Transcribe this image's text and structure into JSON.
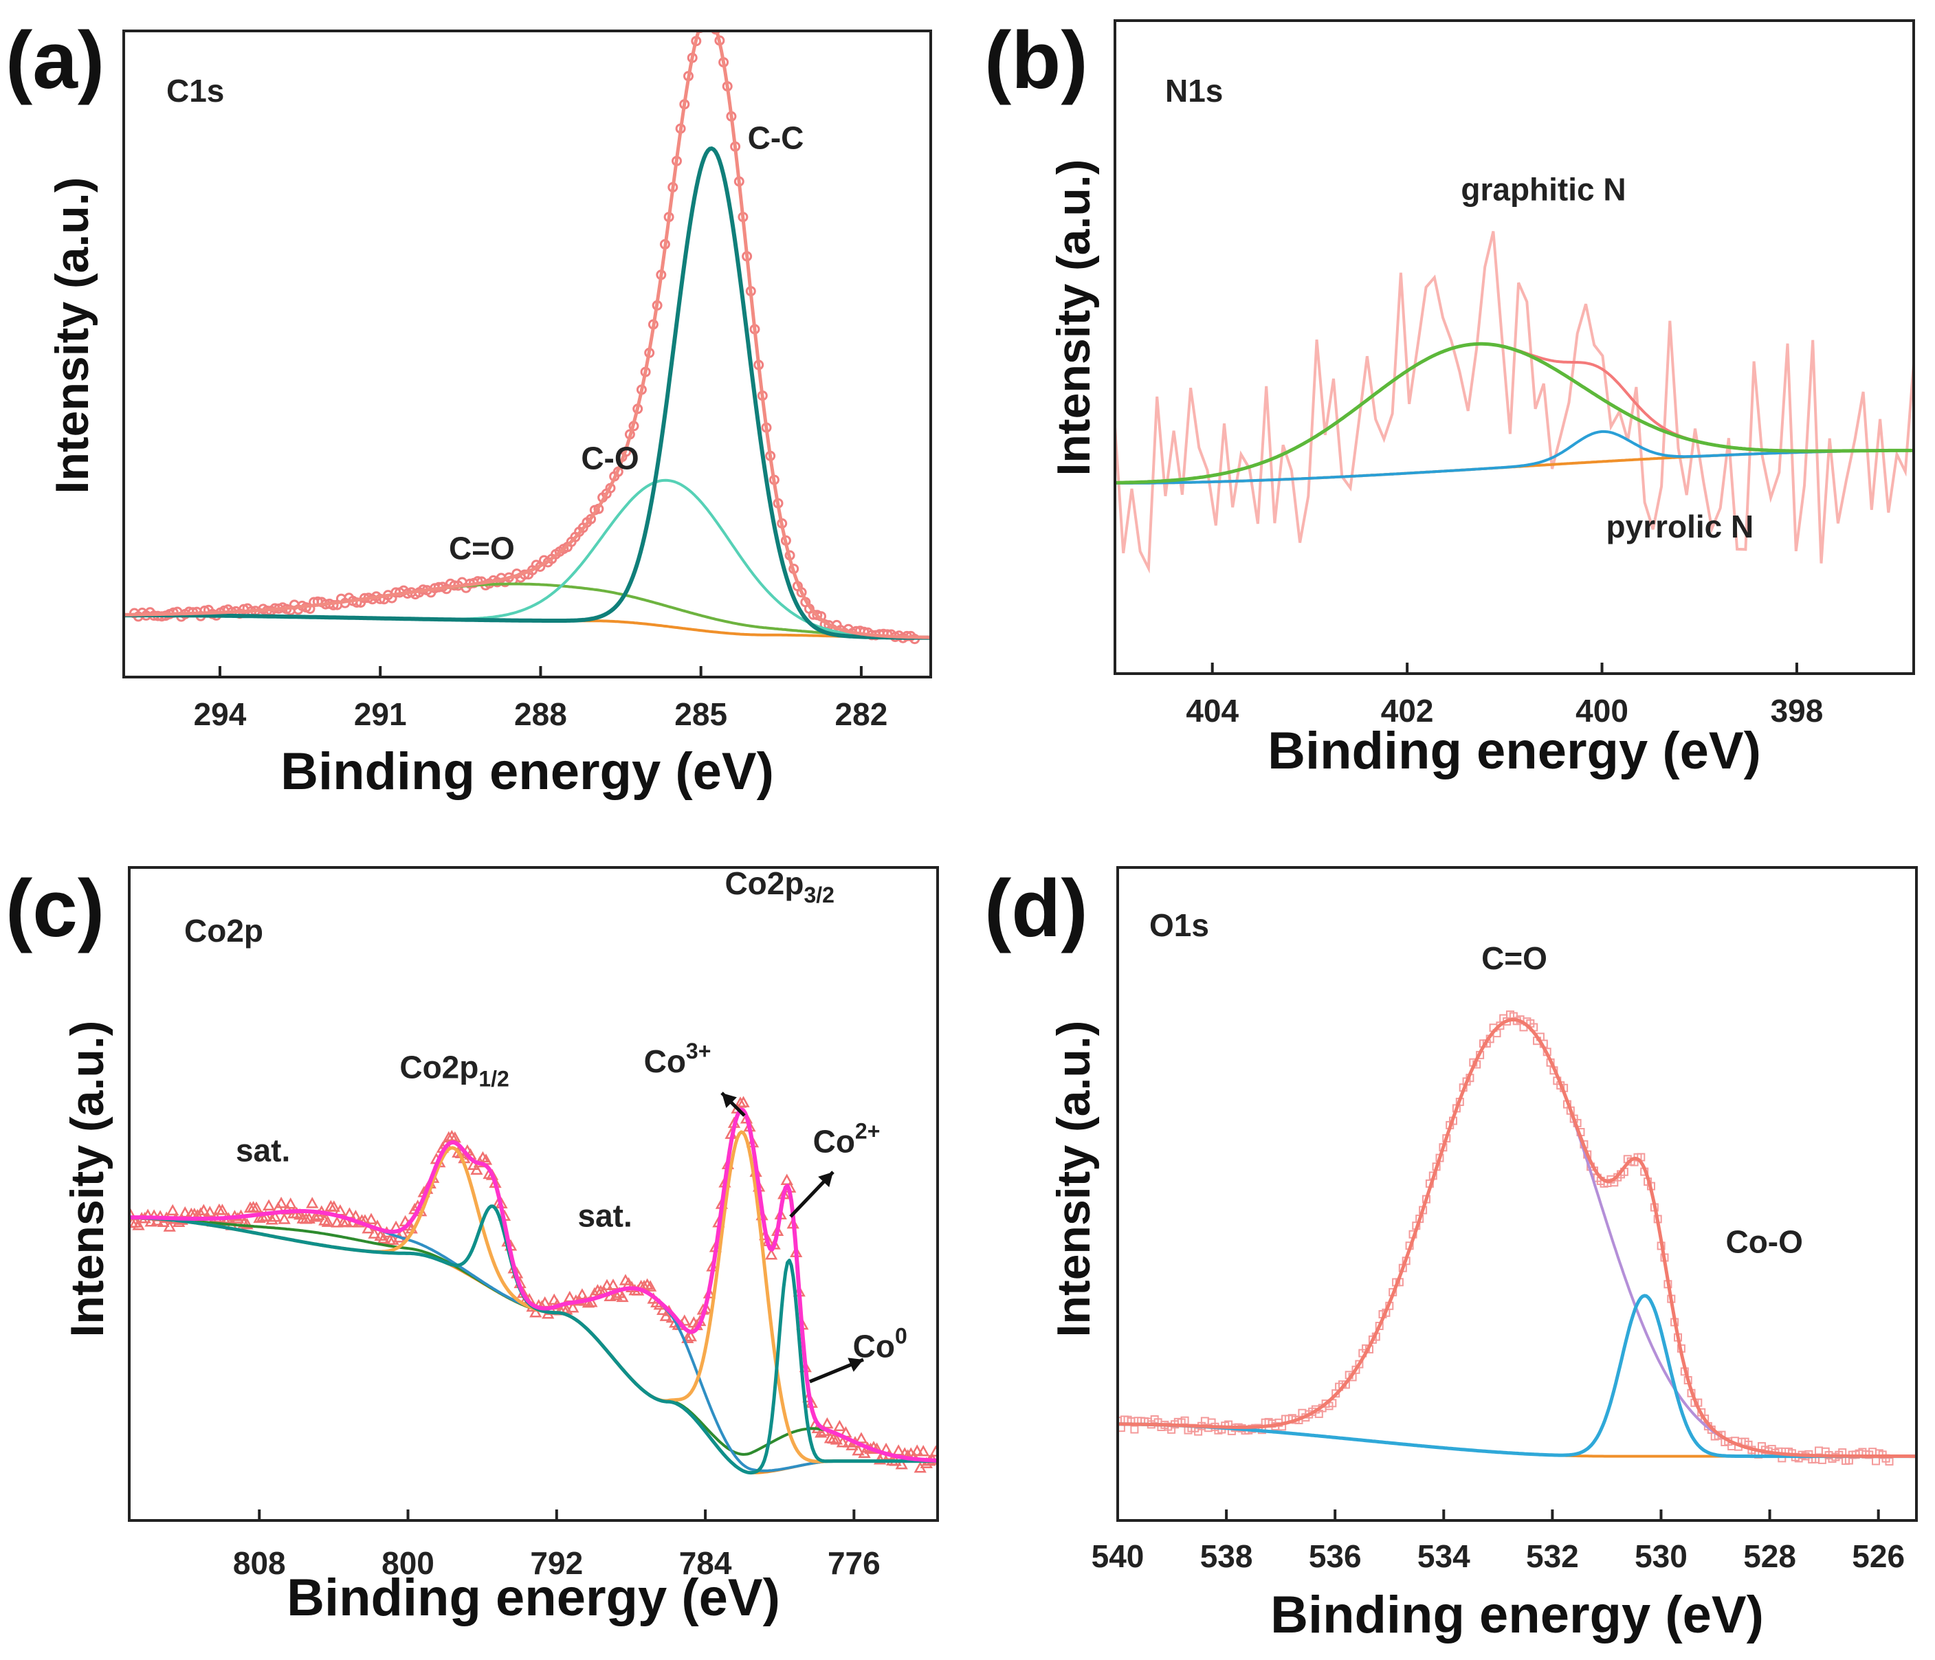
{
  "figure_labels": [
    "(a)",
    "(b)",
    "(c)",
    "(d)"
  ],
  "chart_data": [
    {
      "panel": "(a)",
      "type": "line",
      "title": "C1s",
      "xlabel": "Binding energy (eV)",
      "ylabel": "Intensity (a.u.)",
      "xlim": [
        295.8,
        280.7
      ],
      "ylim": [
        -0.1,
        1.05
      ],
      "xticks": [
        294,
        291,
        288,
        285,
        282
      ],
      "xtick_labels": [
        "294",
        "291",
        "288",
        "285",
        "282"
      ],
      "colors": {
        "raw": "#f08080",
        "envelope": "#f28b82",
        "cc": "#0f7f7a",
        "co": "#56d1b6",
        "ceo": "#6db33f",
        "bg": "#f0902a"
      },
      "annotations": [
        {
          "text": "C-C",
          "x": 283.6,
          "y": 0.84
        },
        {
          "text": "C-O",
          "x": 286.7,
          "y": 0.27
        },
        {
          "text": "C=O",
          "x": 289.1,
          "y": 0.11
        }
      ],
      "series": [
        {
          "name": "background",
          "baseline": [
            [
              295.5,
              0.01
            ],
            [
              287,
              0.0
            ],
            [
              283.8,
              -0.025
            ],
            [
              281,
              -0.03
            ]
          ]
        },
        {
          "name": "C-C",
          "center": 284.8,
          "amplitude": 0.86,
          "fwhm": 1.6
        },
        {
          "name": "C-O",
          "center": 285.6,
          "amplitude": 0.26,
          "fwhm": 2.8
        },
        {
          "name": "C=O",
          "center": 288.4,
          "amplitude": 0.065,
          "fwhm": 6.0
        }
      ]
    },
    {
      "panel": "(b)",
      "type": "line",
      "title": "N1s",
      "xlabel": "Binding energy (eV)",
      "ylabel": "Intensity (a.u.)",
      "xlim": [
        405,
        396.8
      ],
      "ylim": [
        -0.35,
        0.85
      ],
      "xticks": [
        404,
        402,
        400,
        398
      ],
      "xtick_labels": [
        "404",
        "402",
        "400",
        "398"
      ],
      "colors": {
        "raw": "#f9b4b0",
        "envelope": "#f47a7a",
        "graphitic": "#5cb83a",
        "pyrrolic": "#2a9fd6",
        "bg": "#f0902a"
      },
      "annotations": [
        {
          "text": "graphitic N",
          "x": 400.6,
          "y": 0.52
        },
        {
          "text": "pyrrolic N",
          "x": 399.2,
          "y": -0.1
        }
      ],
      "series": [
        {
          "name": "background",
          "baseline": [
            [
              405,
              0.0
            ],
            [
              396.8,
              0.06
            ]
          ]
        },
        {
          "name": "graphitic N",
          "center": 401.3,
          "amplitude": 0.23,
          "fwhm": 2.6
        },
        {
          "name": "pyrrolic N",
          "center": 400.0,
          "amplitude": 0.055,
          "fwhm": 0.7
        }
      ]
    },
    {
      "panel": "(c)",
      "type": "line",
      "title": "Co2p",
      "title_parts": [
        {
          "text": "Co2p",
          "size": 46
        }
      ],
      "xlabel": "Binding energy (eV)",
      "ylabel": "Intensity (a.u.)",
      "xlim": [
        815.0,
        771.5
      ],
      "ylim": [
        -0.1,
        1.0
      ],
      "xticks": [
        808,
        800,
        792,
        784,
        776
      ],
      "xtick_labels": [
        "808",
        "800",
        "792",
        "784",
        "776"
      ],
      "colors": {
        "raw": "#f07070",
        "envelope": "#ff33cc",
        "co3": "#f7a94b",
        "co2": "#0f8f8a",
        "co0": "#2e8b2e",
        "sat": "#2f8fc4",
        "bg": "#f0902a"
      },
      "annotations": [
        {
          "text": "Co2p",
          "sub": "3/2",
          "x": 780.0,
          "y": 0.955
        },
        {
          "text": "Co2p",
          "sub": "1/2",
          "x": 797.5,
          "y": 0.645
        },
        {
          "text": "Co",
          "sup": "3+",
          "x": 785.5,
          "y": 0.655
        },
        {
          "text": "Co",
          "sup": "2+",
          "x": 776.4,
          "y": 0.52
        },
        {
          "text": "Co",
          "sup": "0",
          "x": 774.6,
          "y": 0.175
        },
        {
          "text": "sat.",
          "x": 807.8,
          "y": 0.505
        },
        {
          "text": "sat.",
          "x": 789.4,
          "y": 0.395
        }
      ],
      "series": [
        {
          "name": "background",
          "baseline": [
            [
              815,
              0.41
            ],
            [
              800,
              0.35
            ],
            [
              792,
              0.25
            ],
            [
              786,
              0.1
            ],
            [
              781.5,
              -0.02
            ],
            [
              777,
              0.0
            ],
            [
              771.5,
              0.0
            ]
          ]
        },
        {
          "name": "Co3+ 2p1/2",
          "center": 797.5,
          "amplitude": 0.2,
          "fwhm": 2.9
        },
        {
          "name": "Co2+ 2p1/2",
          "center": 795.4,
          "amplitude": 0.14,
          "fwhm": 1.8
        },
        {
          "name": "sat. 2p1/2",
          "center": 804.5,
          "amplitude": 0.055,
          "fwhm": 8.0
        },
        {
          "name": "Co3+ 2p3/2",
          "center": 782.0,
          "amplitude": 0.57,
          "fwhm": 2.8
        },
        {
          "name": "Co2+ 2p3/2",
          "center": 779.5,
          "amplitude": 0.35,
          "fwhm": 1.3
        },
        {
          "name": "sat. 2p3/2",
          "center": 787.0,
          "amplitude": 0.17,
          "fwhm": 5.0
        },
        {
          "name": "Co0",
          "center": 778.8,
          "amplitude": 0.06,
          "fwhm": 6.0
        }
      ]
    },
    {
      "panel": "(d)",
      "type": "line",
      "title": "O1s",
      "xlabel": "Binding energy (eV)",
      "ylabel": "Intensity (a.u.)",
      "xlim": [
        540,
        525.3
      ],
      "ylim": [
        -0.12,
        1.1
      ],
      "xticks": [
        540,
        538,
        536,
        534,
        532,
        530,
        528,
        526
      ],
      "xtick_labels": [
        "540",
        "538",
        "536",
        "534",
        "532",
        "530",
        "528",
        "526"
      ],
      "colors": {
        "raw": "#f49a9a",
        "envelope": "#f27b6e",
        "ceo": "#b48fd8",
        "coo": "#2fa8d8",
        "bg": "#f0902a"
      },
      "annotations": [
        {
          "text": "C=O",
          "x": 532.7,
          "y": 0.91
        },
        {
          "text": "Co-O",
          "x": 528.1,
          "y": 0.38
        }
      ],
      "series": [
        {
          "name": "background",
          "baseline": [
            [
              540,
              0.06
            ],
            [
              531,
              0.0
            ],
            [
              525.8,
              0.0
            ]
          ]
        },
        {
          "name": "C=O",
          "center": 532.7,
          "amplitude": 0.81,
          "fwhm": 3.6
        },
        {
          "name": "Co-O",
          "center": 530.3,
          "amplitude": 0.3,
          "fwhm": 1.0
        }
      ]
    }
  ]
}
